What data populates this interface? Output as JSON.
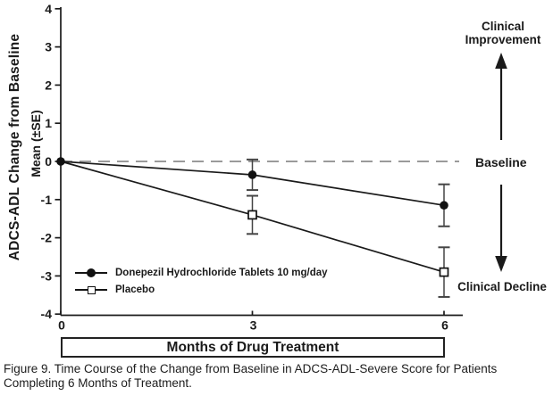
{
  "chart_data": {
    "type": "line",
    "title": "",
    "xlabel": "Months of Drug Treatment",
    "ylabel": "ADCS-ADL Change from Baseline",
    "ylabel2": "Mean (±SE)",
    "ylim": [
      -4,
      4
    ],
    "yticks": [
      4,
      3,
      2,
      1,
      0,
      -1,
      -2,
      -3,
      -4
    ],
    "x": [
      0,
      3,
      6
    ],
    "xticks": [
      0,
      3,
      6
    ],
    "baseline_y": 0,
    "grid": false,
    "legend_position": "lower-left",
    "series": [
      {
        "name": "Donepezil Hydrochloride Tablets 10 mg/day",
        "marker": "filled-circle",
        "values": [
          0,
          -0.35,
          -1.15
        ],
        "se": [
          0,
          0.4,
          0.55
        ]
      },
      {
        "name": "Placebo",
        "marker": "open-square",
        "values": [
          0,
          -1.4,
          -2.9
        ],
        "se": [
          0,
          0.5,
          0.65
        ]
      }
    ],
    "annotations": {
      "improvement": "Clinical Improvement",
      "baseline": "Baseline",
      "decline": "Clinical Decline"
    }
  },
  "caption": "Figure 9. Time Course of the Change from Baseline in ADCS-ADL-Severe Score for Patients Completing 6 Months of Treatment.",
  "colors": {
    "background": "#ffffff",
    "axis": "#1a1a1a",
    "line": "#1a1a1a",
    "text": "#1a1a1a",
    "error_bar": "#444444",
    "baseline_dash": "#8c8c8c",
    "marker_fill": "#111111",
    "marker_open_fill": "#ffffff"
  }
}
